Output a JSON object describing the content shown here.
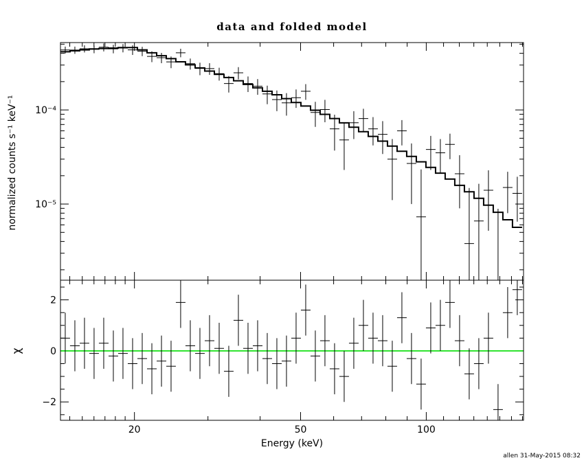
{
  "chart_data": {
    "type": "line",
    "title": "data and folded model",
    "xlabel": "Energy (keV)",
    "ylabel_top": "normalized counts s⁻¹ keV⁻¹",
    "ylabel_bottom": "χ",
    "timestamp": "allen 31-May-2015 08:32",
    "xscale": "log",
    "yscale_top": "log",
    "xlim": [
      13.3,
      171
    ],
    "ylim_top": [
      1.55e-06,
      0.00052
    ],
    "ylim_bottom": [
      -2.72,
      2.77
    ],
    "x_major_ticks": [
      20,
      50,
      100
    ],
    "x_major_labels": [
      "20",
      "50",
      "100"
    ],
    "x_minor_ticks": [
      14,
      15,
      16,
      17,
      18,
      19,
      30,
      40,
      60,
      70,
      80,
      90,
      110,
      120,
      130,
      140,
      150,
      160,
      170
    ],
    "y_major_ticks_top": [
      1e-05,
      0.0001
    ],
    "y_major_labels_top": [
      "10⁻⁵",
      "10⁻⁴"
    ],
    "y_major_ticks_bottom": [
      -2,
      0,
      2
    ],
    "y_major_labels_bottom": [
      "−2",
      "0",
      "2"
    ],
    "y_minor_ticks_bottom": [
      -2.5,
      -1.5,
      -1,
      -0.5,
      0.5,
      1,
      1.5,
      2.5
    ],
    "zero_line_color": "#00dd00",
    "model_color": "#000000",
    "data_color": "#000000",
    "frame_color": "#000000",
    "chi_err": 1.0,
    "bin_edges": [
      13.3,
      14.02,
      14.79,
      15.59,
      16.44,
      17.34,
      18.28,
      19.28,
      20.33,
      21.44,
      22.61,
      23.84,
      25.13,
      26.5,
      27.95,
      29.47,
      31.08,
      32.77,
      34.55,
      36.44,
      38.42,
      40.52,
      42.72,
      45.05,
      47.5,
      50.09,
      52.82,
      55.69,
      58.73,
      61.93,
      65.3,
      68.86,
      72.61,
      76.57,
      80.74,
      85.14,
      89.77,
      94.66,
      99.82,
      105.26,
      110.99,
      117.03,
      123.41,
      130.13,
      137.22,
      144.69,
      152.57,
      160.88,
      169.64
    ],
    "model": [
      0.000415,
      0.000425,
      0.000435,
      0.000445,
      0.00045,
      0.000455,
      0.00046,
      0.00046,
      0.000435,
      0.000405,
      0.000377,
      0.000351,
      0.000325,
      0.000302,
      0.00028,
      0.000259,
      0.000239,
      0.000221,
      0.000204,
      0.000187,
      0.000172,
      0.000158,
      0.000145,
      0.000132,
      0.00012,
      0.00011,
      9.93e-05,
      8.98e-05,
      8.1e-05,
      7.29e-05,
      6.55e-05,
      5.87e-05,
      5.23e-05,
      4.66e-05,
      4.13e-05,
      3.64e-05,
      3.21e-05,
      2.81e-05,
      2.45e-05,
      2.13e-05,
      1.84e-05,
      1.58e-05,
      1.35e-05,
      1.15e-05,
      9.73e-06,
      8.16e-06,
      6.81e-06,
      5.65e-06
    ],
    "data": [
      0.000434,
      0.000433,
      0.000447,
      0.000441,
      0.000464,
      0.000446,
      0.000455,
      0.000435,
      0.000421,
      0.000371,
      0.000359,
      0.000324,
      0.000405,
      0.00031,
      0.000276,
      0.000275,
      0.000243,
      0.000191,
      0.000248,
      0.000191,
      0.000179,
      0.000148,
      0.000129,
      0.000119,
      0.000135,
      0.000158,
      9.4e-05,
      0.000101,
      6.3e-05,
      4.8e-05,
      7.3e-05,
      8.1e-05,
      6.3e-05,
      5.5e-05,
      3e-05,
      6e-05,
      2.7e-05,
      7.3e-06,
      3.8e-05,
      3.5e-05,
      4.3e-05,
      2.1e-05,
      3.8e-06,
      6.6e-06,
      1.4e-05,
      1.4e-06,
      1.5e-05,
      1.3e-05
    ],
    "yerr": [
      3.7e-05,
      3.8e-05,
      3.9e-05,
      4e-05,
      4.5e-05,
      4.6e-05,
      4.6e-05,
      5.1e-05,
      4.8e-05,
      4.9e-05,
      4.5e-05,
      4.6e-05,
      4.2e-05,
      4.2e-05,
      4.2e-05,
      3.9e-05,
      3.8e-05,
      3.8e-05,
      3.7e-05,
      3.6e-05,
      3.4e-05,
      3.3e-05,
      3.2e-05,
      3.2e-05,
      3e-05,
      3e-05,
      2.8e-05,
      2.7e-05,
      2.6e-05,
      2.5e-05,
      2.4e-05,
      2.2e-05,
      2.1e-05,
      2.1e-05,
      1.9e-05,
      1.8e-05,
      1.7e-05,
      1.6e-05,
      1.5e-05,
      1.4e-05,
      1.3e-05,
      1.2e-05,
      1.1e-05,
      9.8e-06,
      8.8e-06,
      7.5e-06,
      7e-06,
      6.5e-06
    ],
    "chi": [
      0.5,
      0.2,
      0.3,
      -0.1,
      0.3,
      -0.2,
      -0.1,
      -0.5,
      -0.3,
      -0.7,
      -0.4,
      -0.6,
      1.9,
      0.2,
      -0.1,
      0.4,
      0.1,
      -0.8,
      1.2,
      0.1,
      0.2,
      -0.3,
      -0.5,
      -0.4,
      0.5,
      1.6,
      -0.2,
      0.4,
      -0.7,
      -1.0,
      0.3,
      1.0,
      0.5,
      0.4,
      -0.6,
      1.3,
      -0.3,
      -1.3,
      0.9,
      1.0,
      1.9,
      0.4,
      -0.9,
      -0.5,
      0.5,
      -2.3,
      1.5,
      2.4
    ]
  }
}
